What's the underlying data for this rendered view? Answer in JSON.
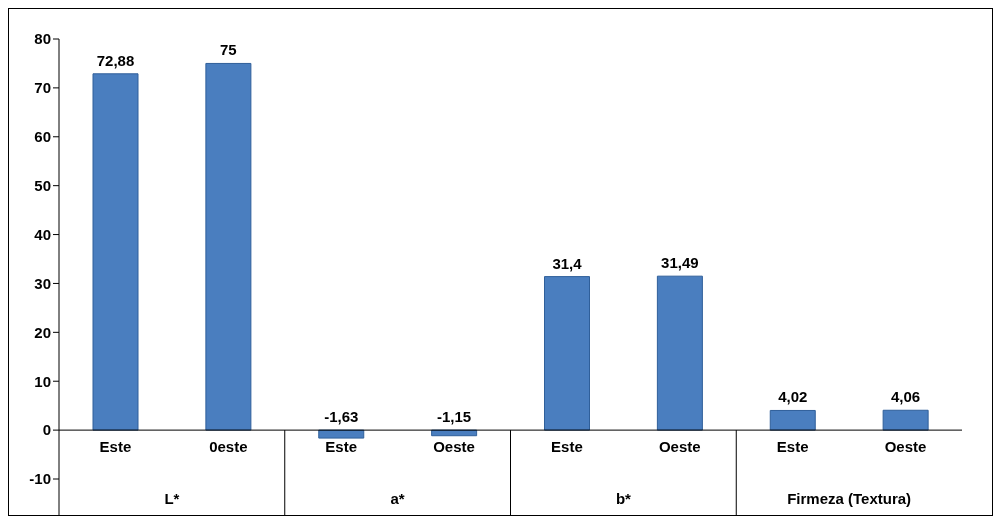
{
  "chart_data": {
    "type": "bar",
    "categories": [
      "Este",
      "0este",
      "Este",
      "Oeste",
      "Este",
      "Oeste",
      "Este",
      "Oeste"
    ],
    "values": [
      72.88,
      75,
      -1.63,
      -1.15,
      31.4,
      31.49,
      4.02,
      4.06
    ],
    "value_labels": [
      "72,88",
      "75",
      "-1,63",
      "-1,15",
      "31,4",
      "31,49",
      "4,02",
      "4,06"
    ],
    "color": "#4a7ebf",
    "ylim": [
      -10,
      80
    ],
    "yticks": [
      -10,
      0,
      10,
      20,
      30,
      40,
      50,
      60,
      70,
      80
    ],
    "annotations": [
      "L*",
      "a*",
      "b*",
      "Firmeza (Textura)"
    ],
    "grid": false,
    "legend": false
  }
}
